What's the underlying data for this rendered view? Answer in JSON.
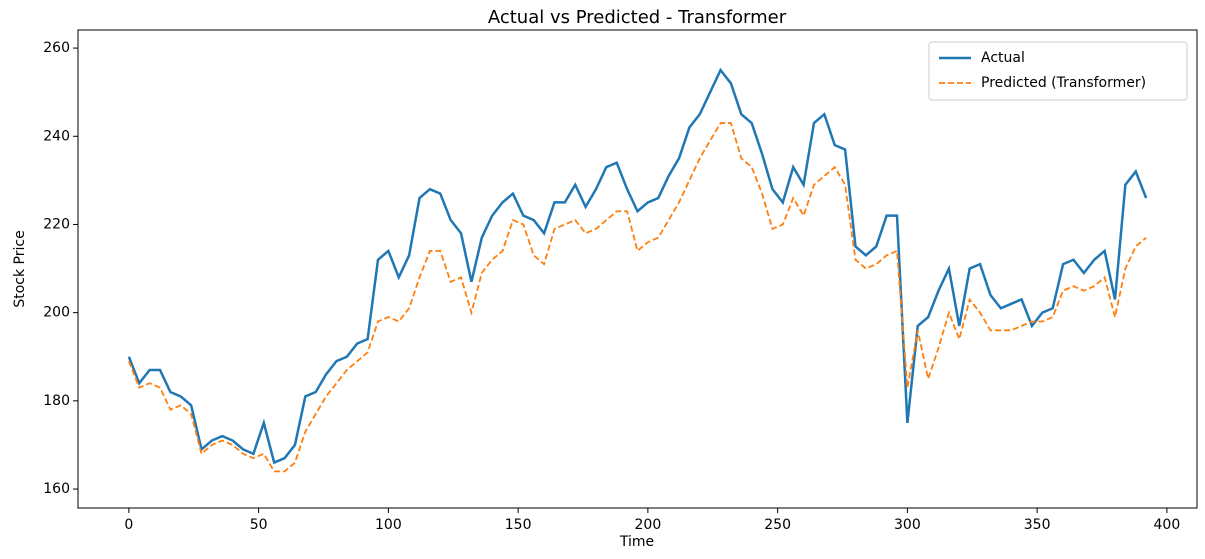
{
  "chart_data": {
    "type": "line",
    "title": "Actual vs Predicted - Transformer",
    "x_label": "Time",
    "y_label": "Stock Price",
    "x": [
      0,
      4,
      8,
      12,
      16,
      20,
      24,
      28,
      32,
      36,
      40,
      44,
      48,
      52,
      56,
      60,
      64,
      68,
      72,
      76,
      80,
      84,
      88,
      92,
      96,
      100,
      104,
      108,
      112,
      116,
      120,
      124,
      128,
      132,
      136,
      140,
      144,
      148,
      152,
      156,
      160,
      164,
      168,
      172,
      176,
      180,
      184,
      188,
      192,
      196,
      200,
      204,
      208,
      212,
      216,
      220,
      224,
      228,
      232,
      236,
      240,
      244,
      248,
      252,
      256,
      260,
      264,
      268,
      272,
      276,
      280,
      284,
      288,
      292,
      296,
      300,
      304,
      308,
      312,
      316,
      320,
      324,
      328,
      332,
      336,
      340,
      344,
      348,
      352,
      356,
      360,
      364,
      368,
      372,
      376,
      380,
      384,
      388,
      392
    ],
    "series": [
      {
        "name": "Actual",
        "color": "#1f77b4",
        "dashed": false,
        "values": [
          190,
          184,
          187,
          187,
          182,
          181,
          179,
          169,
          171,
          172,
          171,
          169,
          168,
          175,
          166,
          167,
          170,
          181,
          182,
          186,
          189,
          190,
          193,
          194,
          212,
          214,
          208,
          213,
          226,
          228,
          227,
          221,
          218,
          207,
          217,
          222,
          225,
          227,
          222,
          221,
          218,
          225,
          225,
          229,
          224,
          228,
          233,
          234,
          228,
          223,
          225,
          226,
          231,
          235,
          242,
          245,
          250,
          255,
          252,
          245,
          243,
          236,
          228,
          225,
          233,
          229,
          243,
          245,
          238,
          237,
          215,
          213,
          215,
          222,
          222,
          175,
          197,
          199,
          205,
          210,
          197,
          210,
          211,
          204,
          201,
          202,
          203,
          197,
          200,
          201,
          211,
          212,
          209,
          212,
          214,
          203,
          229,
          232,
          226
        ]
      },
      {
        "name": "Predicted (Transformer)",
        "color": "#ff7f0e",
        "dashed": true,
        "values": [
          189,
          183,
          184,
          183,
          178,
          179,
          177,
          168,
          170,
          171,
          170,
          168,
          167,
          168,
          164,
          164,
          166,
          173,
          177,
          181,
          184,
          187,
          189,
          191,
          198,
          199,
          198,
          201,
          208,
          214,
          214,
          207,
          208,
          200,
          209,
          212,
          214,
          221,
          220,
          213,
          211,
          219,
          220,
          221,
          218,
          219,
          221,
          223,
          223,
          214,
          216,
          217,
          221,
          225,
          230,
          235,
          239,
          243,
          243,
          235,
          233,
          227,
          219,
          220,
          226,
          222,
          229,
          231,
          233,
          229,
          212,
          210,
          211,
          213,
          214,
          183,
          196,
          185,
          192,
          200,
          194,
          203,
          200,
          196,
          196,
          196,
          197,
          198,
          198,
          199,
          205,
          206,
          205,
          206,
          208,
          199,
          210,
          215,
          217
        ]
      }
    ],
    "xlim": [
      -19.6,
      411.6
    ],
    "ylim": [
      155.7,
      264.1
    ],
    "xticks": [
      0,
      50,
      100,
      150,
      200,
      250,
      300,
      350,
      400
    ],
    "yticks": [
      160,
      180,
      200,
      220,
      240,
      260
    ],
    "legend": "upper right"
  }
}
